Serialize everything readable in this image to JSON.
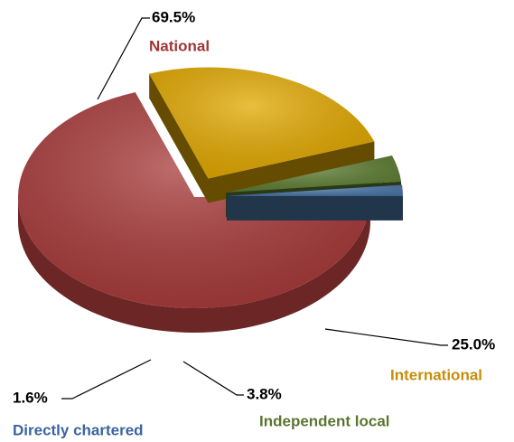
{
  "chart_data": {
    "type": "pie",
    "categories": [
      "National",
      "International",
      "Independent local",
      "Directly chartered"
    ],
    "values": [
      69.5,
      25.0,
      3.8,
      1.6
    ],
    "value_labels": [
      "69.5%",
      "25.0%",
      "3.8%",
      "1.6%"
    ],
    "colors": [
      "#a83a3a",
      "#e2a800",
      "#5e7d32",
      "#4a76a6"
    ],
    "label_colors": [
      "#a33434",
      "#c98d0a",
      "#5a7530",
      "#3b64a0"
    ],
    "start_angle": 90,
    "exploded": [
      false,
      true,
      true,
      true
    ]
  }
}
